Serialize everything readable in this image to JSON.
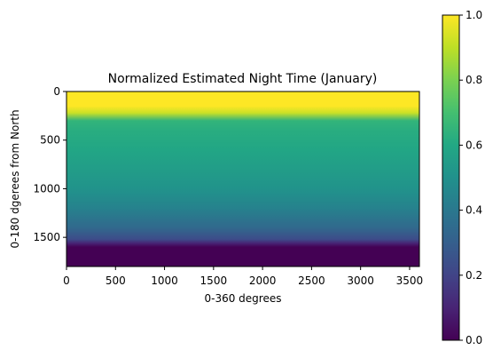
{
  "chart_data": {
    "type": "heatmap",
    "title": "Normalized Estimated Night Time (January)",
    "xlabel": "0-360 degrees",
    "ylabel": "0-180 dgerees from North",
    "xlim": [
      0,
      3600
    ],
    "ylim": [
      1800,
      0
    ],
    "xticks": [
      0,
      500,
      1000,
      1500,
      2000,
      2500,
      3000,
      3500
    ],
    "yticks": [
      0,
      500,
      1000,
      1500
    ],
    "xtick_labels": [
      "0",
      "500",
      "1000",
      "1500",
      "2000",
      "2500",
      "3000",
      "3500"
    ],
    "ytick_labels": [
      "0",
      "500",
      "1000",
      "1500"
    ],
    "colormap": "viridis",
    "colorbar": {
      "min": 0.0,
      "max": 1.0,
      "ticks": [
        0.0,
        0.2,
        0.4,
        0.6,
        0.8,
        1.0
      ],
      "tick_labels": [
        "0.0",
        "0.2",
        "0.4",
        "0.6",
        "0.8",
        "1.0"
      ]
    },
    "row_profile": [
      {
        "row": 0,
        "value": 1.0
      },
      {
        "row": 150,
        "value": 1.0
      },
      {
        "row": 220,
        "value": 0.92
      },
      {
        "row": 300,
        "value": 0.65
      },
      {
        "row": 400,
        "value": 0.62
      },
      {
        "row": 600,
        "value": 0.59
      },
      {
        "row": 800,
        "value": 0.55
      },
      {
        "row": 1000,
        "value": 0.51
      },
      {
        "row": 1200,
        "value": 0.44
      },
      {
        "row": 1400,
        "value": 0.34
      },
      {
        "row": 1520,
        "value": 0.23
      },
      {
        "row": 1560,
        "value": 0.1
      },
      {
        "row": 1600,
        "value": 0.0
      },
      {
        "row": 1800,
        "value": 0.0
      }
    ]
  }
}
